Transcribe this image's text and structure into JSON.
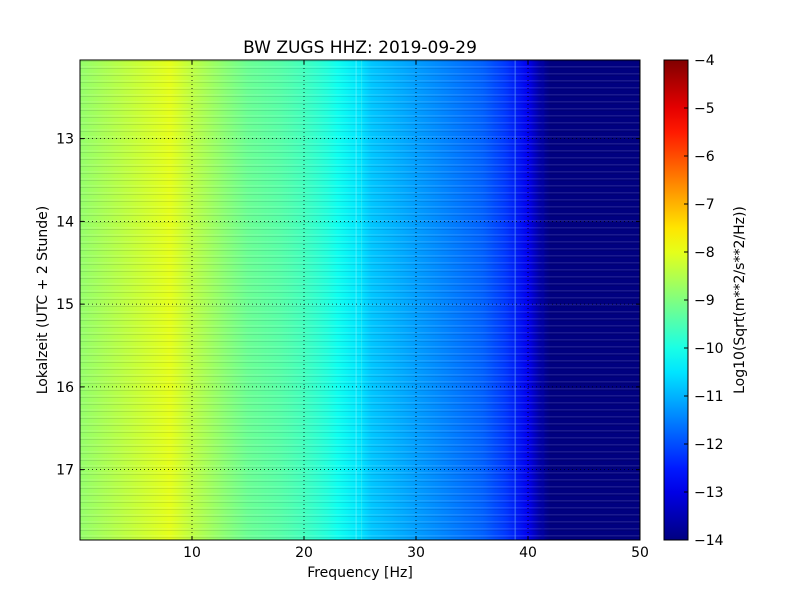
{
  "chart_data": {
    "type": "heatmap",
    "title": "BW ZUGS HHZ: 2019-09-29",
    "xlabel": "Frequency [Hz]",
    "ylabel": "Lokalzeit (UTC + 2 Stunde)",
    "xlim": [
      0,
      50
    ],
    "ylim": [
      12.05,
      17.85
    ],
    "y_inverted": true,
    "x_ticks": [
      10,
      20,
      30,
      40,
      50
    ],
    "x_tick_labels": [
      "10",
      "20",
      "30",
      "40",
      "50"
    ],
    "y_ticks": [
      13,
      14,
      15,
      16,
      17
    ],
    "y_tick_labels": [
      "13",
      "14",
      "15",
      "16",
      "17"
    ],
    "grid": true,
    "colormap": "jet",
    "colorbar": {
      "label": "Log10(Sqrt(m**2/s**2/Hz))",
      "range": [
        -14,
        -4
      ],
      "ticks": [
        -4,
        -5,
        -6,
        -7,
        -8,
        -9,
        -10,
        -11,
        -12,
        -13,
        -14
      ],
      "tick_labels": [
        "−4",
        "−5",
        "−6",
        "−7",
        "−8",
        "−9",
        "−10",
        "−11",
        "−12",
        "−13",
        "−14"
      ]
    },
    "spectral_profile": {
      "frequency_hz": [
        0,
        3,
        6,
        8,
        10,
        13,
        15,
        18,
        20,
        22,
        23,
        25,
        26,
        28,
        30,
        33,
        36,
        38,
        40,
        41,
        42,
        45,
        50
      ],
      "log10_amplitude": [
        -8.8,
        -8.5,
        -8.2,
        -8.0,
        -8.4,
        -8.9,
        -9.2,
        -9.4,
        -9.6,
        -9.9,
        -10.1,
        -10.5,
        -10.8,
        -11.0,
        -11.2,
        -11.5,
        -11.8,
        -12.2,
        -12.9,
        -13.6,
        -14.0,
        -14.0,
        -14.0
      ]
    }
  }
}
